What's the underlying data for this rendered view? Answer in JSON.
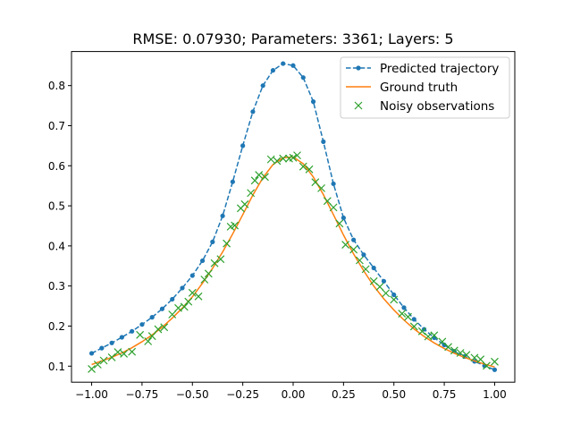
{
  "chart_data": {
    "type": "line",
    "title": "RMSE: 0.07930; Parameters: 3361; Layers: 5",
    "xlabel": "",
    "ylabel": "",
    "xlim": [
      -1.1,
      1.1
    ],
    "ylim": [
      0.06,
      0.885
    ],
    "grid": false,
    "legend_position": "top-right",
    "x_ticks": [
      -1.0,
      -0.75,
      -0.5,
      -0.25,
      0.0,
      0.25,
      0.5,
      0.75,
      1.0
    ],
    "x_tick_labels": [
      "−1.00",
      "−0.75",
      "−0.50",
      "−0.25",
      "0.00",
      "0.25",
      "0.50",
      "0.75",
      "1.00"
    ],
    "y_ticks": [
      0.1,
      0.2,
      0.3,
      0.4,
      0.5,
      0.6,
      0.7,
      0.8
    ],
    "y_tick_labels": [
      "0.1",
      "0.2",
      "0.3",
      "0.4",
      "0.5",
      "0.6",
      "0.7",
      "0.8"
    ],
    "colors": {
      "predicted": "#1f77b4",
      "truth": "#ff7f0e",
      "noisy": "#2ca02c"
    },
    "series": [
      {
        "name": "Predicted trajectory",
        "style": "dashed-dots",
        "x": [
          -1.0,
          -0.95,
          -0.9,
          -0.85,
          -0.8,
          -0.75,
          -0.7,
          -0.65,
          -0.6,
          -0.55,
          -0.5,
          -0.45,
          -0.4,
          -0.35,
          -0.3,
          -0.25,
          -0.2,
          -0.15,
          -0.1,
          -0.05,
          0.0,
          0.05,
          0.1,
          0.15,
          0.2,
          0.25,
          0.3,
          0.35,
          0.4,
          0.45,
          0.5,
          0.55,
          0.6,
          0.65,
          0.7,
          0.75,
          0.8,
          0.85,
          0.9,
          0.95,
          1.0
        ],
        "values": [
          0.132,
          0.145,
          0.158,
          0.172,
          0.187,
          0.204,
          0.222,
          0.243,
          0.267,
          0.295,
          0.326,
          0.363,
          0.41,
          0.475,
          0.56,
          0.65,
          0.735,
          0.8,
          0.838,
          0.855,
          0.85,
          0.82,
          0.76,
          0.66,
          0.555,
          0.47,
          0.415,
          0.378,
          0.345,
          0.312,
          0.278,
          0.246,
          0.217,
          0.192,
          0.171,
          0.153,
          0.137,
          0.124,
          0.112,
          0.101,
          0.091
        ]
      },
      {
        "name": "Ground truth",
        "style": "solid",
        "x": [
          -1.0,
          -0.95,
          -0.9,
          -0.85,
          -0.8,
          -0.75,
          -0.7,
          -0.65,
          -0.6,
          -0.55,
          -0.5,
          -0.45,
          -0.4,
          -0.35,
          -0.3,
          -0.25,
          -0.2,
          -0.15,
          -0.1,
          -0.05,
          0.0,
          0.05,
          0.1,
          0.15,
          0.2,
          0.25,
          0.3,
          0.35,
          0.4,
          0.45,
          0.5,
          0.55,
          0.6,
          0.65,
          0.7,
          0.75,
          0.8,
          0.85,
          0.9,
          0.95,
          1.0
        ],
        "values": [
          0.104,
          0.113,
          0.122,
          0.133,
          0.146,
          0.161,
          0.178,
          0.197,
          0.22,
          0.245,
          0.273,
          0.307,
          0.344,
          0.385,
          0.43,
          0.478,
          0.527,
          0.57,
          0.603,
          0.62,
          0.622,
          0.605,
          0.572,
          0.528,
          0.478,
          0.427,
          0.38,
          0.338,
          0.3,
          0.268,
          0.24,
          0.215,
          0.193,
          0.174,
          0.158,
          0.144,
          0.132,
          0.122,
          0.113,
          0.105,
          0.098
        ]
      },
      {
        "name": "Noisy observations",
        "style": "markers-x",
        "x": [
          -1.0,
          -0.97,
          -0.94,
          -0.9,
          -0.87,
          -0.84,
          -0.8,
          -0.76,
          -0.72,
          -0.7,
          -0.67,
          -0.64,
          -0.6,
          -0.57,
          -0.54,
          -0.52,
          -0.5,
          -0.47,
          -0.44,
          -0.42,
          -0.39,
          -0.36,
          -0.33,
          -0.31,
          -0.29,
          -0.26,
          -0.24,
          -0.21,
          -0.19,
          -0.17,
          -0.14,
          -0.11,
          -0.08,
          -0.05,
          -0.02,
          0.0,
          0.02,
          0.05,
          0.08,
          0.11,
          0.14,
          0.17,
          0.2,
          0.23,
          0.26,
          0.3,
          0.33,
          0.36,
          0.4,
          0.43,
          0.46,
          0.5,
          0.54,
          0.57,
          0.6,
          0.64,
          0.67,
          0.7,
          0.74,
          0.77,
          0.8,
          0.83,
          0.86,
          0.9,
          0.93,
          0.96,
          1.0
        ],
        "values": [
          0.093,
          0.104,
          0.114,
          0.122,
          0.135,
          0.131,
          0.136,
          0.178,
          0.162,
          0.175,
          0.192,
          0.197,
          0.229,
          0.245,
          0.248,
          0.261,
          0.283,
          0.274,
          0.316,
          0.331,
          0.357,
          0.367,
          0.406,
          0.448,
          0.451,
          0.494,
          0.504,
          0.532,
          0.563,
          0.577,
          0.572,
          0.616,
          0.612,
          0.618,
          0.618,
          0.62,
          0.626,
          0.598,
          0.591,
          0.559,
          0.544,
          0.512,
          0.496,
          0.456,
          0.403,
          0.391,
          0.364,
          0.342,
          0.312,
          0.298,
          0.282,
          0.266,
          0.231,
          0.223,
          0.199,
          0.187,
          0.174,
          0.177,
          0.161,
          0.148,
          0.139,
          0.133,
          0.128,
          0.121,
          0.117,
          0.101,
          0.111
        ]
      }
    ]
  }
}
